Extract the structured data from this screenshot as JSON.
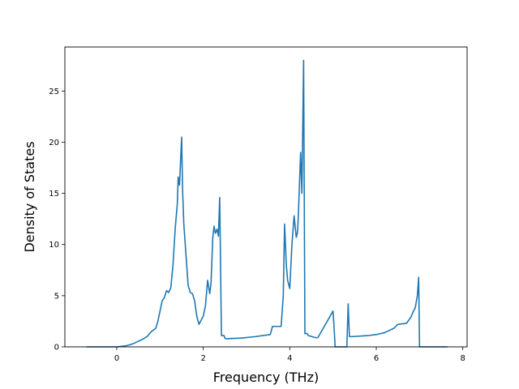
{
  "chart_data": {
    "type": "line",
    "title": "",
    "xlabel": "Frequency (THz)",
    "ylabel": "Density of States",
    "xlim": [
      -1.2,
      8.1
    ],
    "ylim": [
      0,
      29.3
    ],
    "xticks": [
      0,
      2,
      4,
      6,
      8
    ],
    "yticks": [
      0,
      5,
      10,
      15,
      20,
      25
    ],
    "grid": false,
    "legend": "none",
    "series": [
      {
        "color": "#1f77b4",
        "x": [
          -0.7,
          -0.1,
          0.0,
          0.1,
          0.2,
          0.3,
          0.4,
          0.5,
          0.6,
          0.7,
          0.8,
          0.9,
          0.95,
          1.0,
          1.05,
          1.1,
          1.15,
          1.2,
          1.25,
          1.3,
          1.35,
          1.4,
          1.42,
          1.45,
          1.5,
          1.52,
          1.55,
          1.6,
          1.65,
          1.7,
          1.75,
          1.8,
          1.85,
          1.9,
          1.95,
          2.0,
          2.05,
          2.1,
          2.15,
          2.18,
          2.22,
          2.25,
          2.28,
          2.32,
          2.35,
          2.38,
          2.42,
          2.45,
          2.48,
          2.5,
          2.53,
          2.56,
          2.8,
          2.85,
          3.2,
          3.55,
          3.6,
          3.8,
          3.85,
          3.88,
          3.9,
          3.92,
          3.95,
          4.0,
          4.05,
          4.1,
          4.15,
          4.18,
          4.2,
          4.25,
          4.28,
          4.32,
          4.35,
          4.38,
          4.4,
          4.43,
          4.6,
          4.65,
          5.0,
          5.02,
          5.05,
          5.08,
          5.3,
          5.32,
          5.35,
          5.38,
          5.42,
          5.45,
          5.8,
          6.0,
          6.2,
          6.4,
          6.5,
          6.7,
          6.8,
          6.85,
          6.9,
          6.95,
          6.98,
          7.0,
          7.65
        ],
        "y": [
          0,
          0,
          0,
          0.05,
          0.1,
          0.2,
          0.35,
          0.55,
          0.75,
          1.0,
          1.5,
          1.8,
          2.5,
          3.5,
          4.5,
          4.8,
          5.5,
          5.3,
          5.8,
          8.0,
          11.5,
          14.0,
          16.6,
          15.8,
          20.5,
          15.5,
          12.0,
          9.0,
          6.0,
          5.3,
          5.2,
          4.5,
          3.0,
          2.2,
          2.6,
          3.0,
          4.0,
          6.5,
          5.2,
          6.3,
          10.7,
          11.8,
          11.1,
          11.5,
          10.8,
          14.6,
          1.1,
          1.1,
          1.1,
          0.85,
          0.8,
          0.8,
          0.85,
          0.85,
          1.0,
          1.2,
          2.0,
          2.0,
          5.0,
          12.0,
          10.0,
          8.0,
          6.5,
          5.7,
          10.0,
          12.8,
          10.7,
          11.2,
          13.0,
          19.0,
          15.0,
          28.0,
          1.3,
          1.3,
          1.3,
          1.1,
          0.9,
          0.9,
          3.5,
          2.2,
          0,
          0,
          0,
          0,
          4.2,
          1.0,
          1.0,
          1.0,
          1.1,
          1.2,
          1.4,
          1.8,
          2.2,
          2.3,
          2.9,
          3.4,
          3.8,
          5.0,
          6.8,
          0,
          0
        ]
      }
    ]
  }
}
